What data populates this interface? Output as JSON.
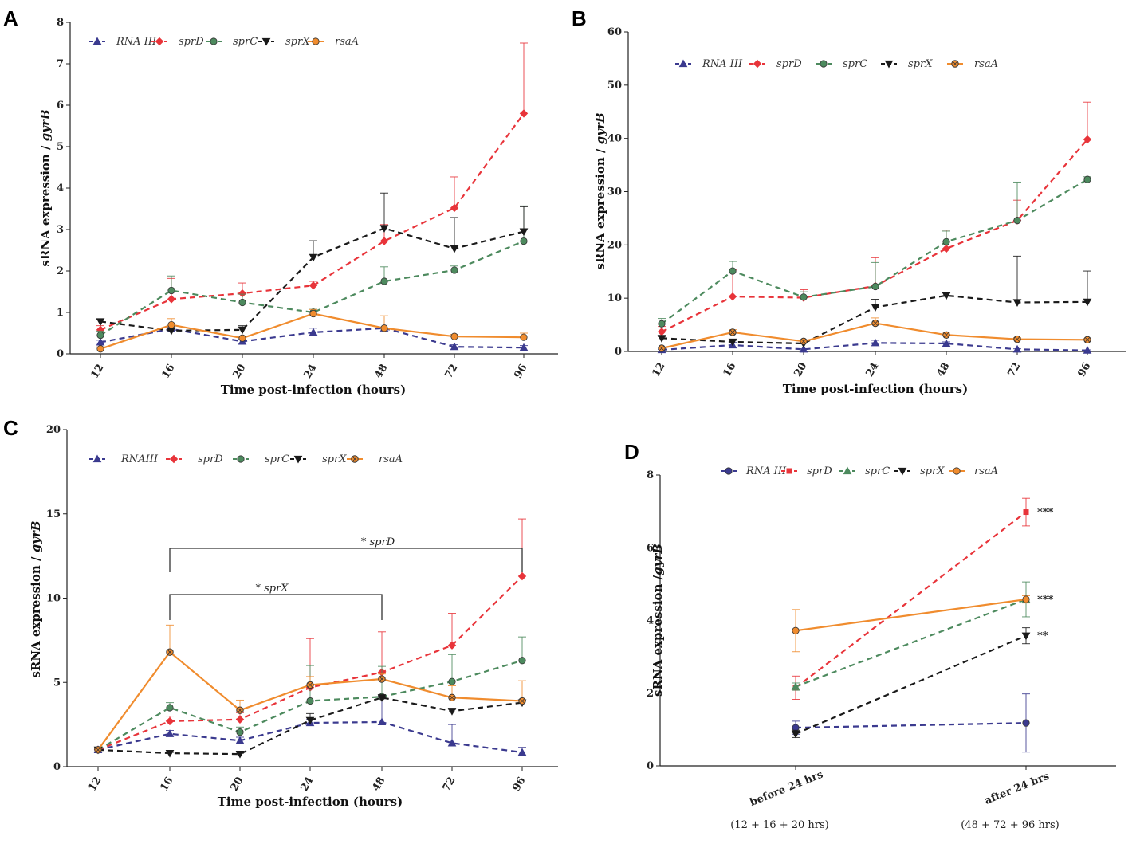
{
  "colors": {
    "RNAIII": "#3b3a8f",
    "sprD": "#e8343a",
    "sprC": "#4d8a5e",
    "sprX": "#1a1a1a",
    "rsaA": "#f08c2e"
  },
  "chart_data": [
    {
      "panel": "A",
      "type": "line",
      "xlabel": "Time post-infection (hours)",
      "ylabel": "sRNA expression / gyrB",
      "categories": [
        "12",
        "16",
        "20",
        "24",
        "48",
        "72",
        "96"
      ],
      "ylim": [
        0,
        8
      ],
      "yticks": [
        "0",
        "1",
        "2",
        "3",
        "4",
        "5",
        "6",
        "7",
        "8"
      ],
      "series": [
        {
          "name": "RNA III",
          "key": "RNAIII",
          "marker": "triangle",
          "dash": true,
          "values": [
            0.28,
            0.6,
            0.3,
            0.52,
            0.62,
            0.17,
            0.15
          ],
          "err": [
            0.05,
            0.05,
            0.05,
            0.1,
            0.1,
            0.05,
            0.05
          ]
        },
        {
          "name": "sprD",
          "key": "sprD",
          "marker": "diamond",
          "dash": true,
          "values": [
            0.58,
            1.32,
            1.46,
            1.65,
            2.72,
            3.52,
            5.8
          ],
          "err": [
            0.1,
            0.5,
            0.25,
            0.1,
            0.4,
            0.75,
            1.7
          ]
        },
        {
          "name": "sprC",
          "key": "sprC",
          "marker": "circle",
          "dash": true,
          "values": [
            0.45,
            1.53,
            1.24,
            1.0,
            1.75,
            2.02,
            2.72
          ],
          "err": [
            0.1,
            0.35,
            0.2,
            0.1,
            0.35,
            0.1,
            0.85
          ]
        },
        {
          "name": "sprX",
          "key": "sprX",
          "marker": "tridown",
          "dash": true,
          "values": [
            0.78,
            0.56,
            0.58,
            2.33,
            3.03,
            2.54,
            2.95
          ],
          "err": [
            0.05,
            0.05,
            0.1,
            0.4,
            0.85,
            0.75,
            0.6
          ]
        },
        {
          "name": "rsaA",
          "key": "rsaA",
          "marker": "circle",
          "dash": false,
          "values": [
            0.12,
            0.7,
            0.38,
            0.97,
            0.62,
            0.42,
            0.4
          ],
          "err": [
            0.05,
            0.15,
            0.05,
            0.1,
            0.3,
            0.05,
            0.1
          ]
        }
      ]
    },
    {
      "panel": "B",
      "type": "line",
      "xlabel": "Time post-infection (hours)",
      "ylabel": "sRNA expression / gyrB",
      "categories": [
        "12",
        "16",
        "20",
        "24",
        "48",
        "72",
        "96"
      ],
      "ylim": [
        0,
        60
      ],
      "yticks": [
        "0",
        "10",
        "20",
        "30",
        "40",
        "50",
        "60"
      ],
      "series": [
        {
          "name": "RNA III",
          "key": "RNAIII",
          "marker": "triangle",
          "dash": true,
          "values": [
            0.3,
            1.2,
            0.4,
            1.6,
            1.5,
            0.4,
            0.2
          ],
          "err": [
            0.1,
            0.5,
            0.1,
            0.5,
            0.3,
            0.1,
            0.1
          ]
        },
        {
          "name": "sprD",
          "key": "sprD",
          "marker": "diamond",
          "dash": true,
          "values": [
            3.7,
            10.3,
            10.1,
            12.3,
            19.3,
            24.6,
            39.8
          ],
          "err": [
            1.0,
            5.0,
            1.5,
            5.3,
            3.5,
            3.8,
            7.0
          ]
        },
        {
          "name": "sprC",
          "key": "sprC",
          "marker": "circle",
          "dash": true,
          "values": [
            5.2,
            15.1,
            10.2,
            12.2,
            20.6,
            24.6,
            32.3
          ],
          "err": [
            1.0,
            1.8,
            1.0,
            4.5,
            2.0,
            7.2,
            0.5
          ]
        },
        {
          "name": "sprX",
          "key": "sprX",
          "marker": "tridown",
          "dash": true,
          "values": [
            2.5,
            1.8,
            1.5,
            8.3,
            10.5,
            9.2,
            9.3
          ],
          "err": [
            0.3,
            0.3,
            0.3,
            1.5,
            0.5,
            8.7,
            5.8
          ]
        },
        {
          "name": "rsaA",
          "key": "rsaA",
          "marker": "circlex",
          "dash": false,
          "values": [
            0.6,
            3.6,
            1.9,
            5.3,
            3.1,
            2.3,
            2.2
          ],
          "err": [
            0.2,
            0.5,
            0.3,
            1.0,
            0.5,
            0.3,
            0.2
          ]
        }
      ]
    },
    {
      "panel": "C",
      "type": "line",
      "xlabel": "Time post-infection (hours)",
      "ylabel": "sRNA expression / gyrB",
      "categories": [
        "12",
        "16",
        "20",
        "24",
        "48",
        "72",
        "96"
      ],
      "ylim": [
        0,
        20
      ],
      "yticks": [
        "0",
        "5",
        "10",
        "15",
        "20"
      ],
      "annotations": [
        "* sprD",
        "* sprX"
      ],
      "series": [
        {
          "name": "RNAIII",
          "key": "RNAIII",
          "marker": "triangle",
          "dash": true,
          "values": [
            1.0,
            1.95,
            1.55,
            2.6,
            2.65,
            1.4,
            0.85
          ],
          "err": [
            0.05,
            0.2,
            0.2,
            0.2,
            1.6,
            1.1,
            0.3
          ]
        },
        {
          "name": "sprD",
          "key": "sprD",
          "marker": "diamond",
          "dash": true,
          "values": [
            1.0,
            2.7,
            2.8,
            4.7,
            5.6,
            7.2,
            11.3
          ],
          "err": [
            0.05,
            0.3,
            0.4,
            2.9,
            2.4,
            1.9,
            3.4
          ]
        },
        {
          "name": "sprC",
          "key": "sprC",
          "marker": "circle",
          "dash": true,
          "values": [
            1.0,
            3.5,
            2.05,
            3.9,
            4.15,
            5.05,
            6.3
          ],
          "err": [
            0.05,
            0.3,
            0.3,
            2.1,
            1.8,
            1.6,
            1.4
          ]
        },
        {
          "name": "sprX",
          "key": "sprX",
          "marker": "tridown",
          "dash": true,
          "values": [
            1.0,
            0.8,
            0.75,
            2.75,
            4.1,
            3.3,
            3.8
          ],
          "err": [
            0.05,
            0.05,
            0.05,
            0.4,
            0.1,
            0.1,
            0.1
          ]
        },
        {
          "name": "rsaA",
          "key": "rsaA",
          "marker": "circlex",
          "dash": false,
          "values": [
            1.0,
            6.8,
            3.35,
            4.85,
            5.2,
            4.1,
            3.9
          ],
          "err": [
            0.05,
            1.6,
            0.6,
            0.5,
            0.3,
            0.7,
            1.2
          ]
        }
      ]
    },
    {
      "panel": "D",
      "type": "line",
      "xlabel": "",
      "ylabel": "sRNA expression /gyrB",
      "categories": [
        "before 24 hrs",
        "after 24 hrs"
      ],
      "category_sub": [
        "(12 + 16 + 20 hrs)",
        "(48 + 72 + 96 hrs)"
      ],
      "ylim": [
        0,
        8
      ],
      "yticks": [
        "0",
        "2",
        "4",
        "6",
        "8"
      ],
      "significance": [
        {
          "series": "sprD",
          "label": "***"
        },
        {
          "series": "sprC",
          "label": "***"
        },
        {
          "series": "sprX",
          "label": "**"
        }
      ],
      "series": [
        {
          "name": "RNA III",
          "key": "RNAIII",
          "marker": "circle",
          "dash": true,
          "values": [
            1.05,
            1.18
          ],
          "err": [
            0.18,
            0.8
          ]
        },
        {
          "name": "sprD",
          "key": "sprD",
          "marker": "square",
          "dash": true,
          "values": [
            2.15,
            6.98
          ],
          "err": [
            0.32,
            0.38
          ]
        },
        {
          "name": "sprC",
          "key": "sprC",
          "marker": "triangle",
          "dash": true,
          "values": [
            2.18,
            4.58
          ],
          "err": [
            0.1,
            0.48
          ]
        },
        {
          "name": "sprX",
          "key": "sprX",
          "marker": "tridown",
          "dash": true,
          "values": [
            0.88,
            3.58
          ],
          "err": [
            0.1,
            0.22
          ]
        },
        {
          "name": "rsaA",
          "key": "rsaA",
          "marker": "circle",
          "dash": false,
          "values": [
            3.72,
            4.58
          ],
          "err": [
            0.58,
            0.1
          ]
        }
      ]
    }
  ]
}
